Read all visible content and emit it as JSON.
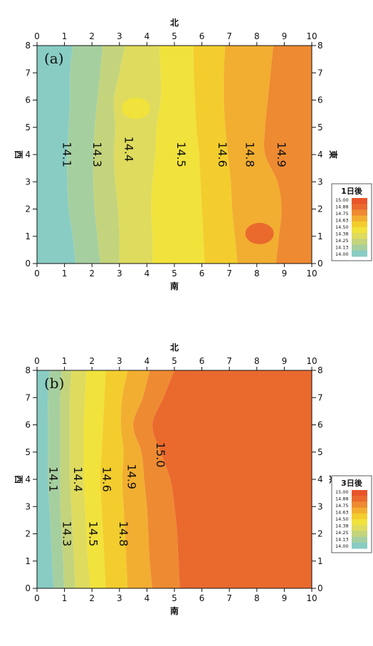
{
  "colors": {
    "levels": [
      "#88ccc4",
      "#a6cfa0",
      "#c4d47c",
      "#dedb5e",
      "#f1e23c",
      "#f3cd2e",
      "#f2ae30",
      "#ee8a32",
      "#ea6a2e",
      "#e8552a"
    ]
  },
  "chart_data": [
    {
      "type": "heatmap",
      "panel_label": "(a)",
      "legend_title": "1日後",
      "legend_entries": [
        "15.00",
        "14.88",
        "14.75",
        "14.63",
        "14.50",
        "14.38",
        "14.25",
        "14.13",
        "14.00"
      ],
      "axis_labels": {
        "top": "北",
        "bottom": "南",
        "left": "西",
        "right": "東"
      },
      "x_ticks": [
        "0",
        "1",
        "2",
        "3",
        "4",
        "5",
        "6",
        "7",
        "8",
        "9",
        "10"
      ],
      "y_ticks": [
        "0",
        "1",
        "2",
        "3",
        "4",
        "5",
        "6",
        "7",
        "8"
      ],
      "xlim": [
        0,
        10
      ],
      "ylim": [
        0,
        8
      ],
      "contours": [
        {
          "label": "14.1",
          "value": 14.1,
          "x": [
            1.4,
            1.3,
            1.15,
            1.1,
            1.1,
            1.15,
            1.2,
            1.2,
            1.3
          ]
        },
        {
          "label": "14.3",
          "value": 14.3,
          "x": [
            2.3,
            2.2,
            2.1,
            2.05,
            2.05,
            2.1,
            2.2,
            2.3,
            2.4
          ]
        },
        {
          "label": "14.4",
          "value": 14.4,
          "x": [
            3.0,
            3.0,
            2.95,
            2.85,
            2.8,
            2.85,
            2.8,
            3.0,
            3.2
          ]
        },
        {
          "label": "14.5",
          "value": 14.5,
          "x": [
            4.2,
            4.2,
            4.15,
            4.2,
            4.3,
            4.35,
            4.5,
            4.5,
            4.45
          ]
        },
        {
          "label": "14.6",
          "value": 14.6,
          "x": [
            6.1,
            6.05,
            6.0,
            5.95,
            5.9,
            5.8,
            5.75,
            5.7,
            5.7
          ]
        },
        {
          "label": "14.8",
          "value": 14.8,
          "x": [
            7.3,
            7.2,
            7.1,
            7.05,
            6.95,
            6.85,
            6.8,
            6.8,
            6.85
          ]
        },
        {
          "label": "14.9",
          "value": 14.9,
          "x": [
            8.7,
            8.8,
            8.9,
            8.75,
            8.3,
            8.3,
            8.4,
            8.5,
            8.6
          ]
        }
      ],
      "spots": [
        {
          "x": 3.6,
          "y": 5.7,
          "level": 4
        },
        {
          "x": 8.1,
          "y": 1.1,
          "level": 8
        }
      ],
      "label_positions": [
        {
          "text": "14.1",
          "x": 0.95,
          "y": 4.0
        },
        {
          "text": "14.3",
          "x": 2.05,
          "y": 4.0
        },
        {
          "text": "14.4",
          "x": 3.2,
          "y": 4.2
        },
        {
          "text": "14.5",
          "x": 5.1,
          "y": 4.0
        },
        {
          "text": "14.6",
          "x": 6.6,
          "y": 4.0
        },
        {
          "text": "14.8",
          "x": 7.6,
          "y": 4.0
        },
        {
          "text": "14.9",
          "x": 8.75,
          "y": 4.0
        }
      ]
    },
    {
      "type": "heatmap",
      "panel_label": "(b)",
      "legend_title": "3日後",
      "legend_entries": [
        "15.00",
        "14.88",
        "14.75",
        "14.63",
        "14.50",
        "14.38",
        "14.25",
        "14.13",
        "14.00"
      ],
      "axis_labels": {
        "top": "北",
        "bottom": "南",
        "left": "西",
        "right": "東"
      },
      "x_ticks": [
        "0",
        "1",
        "2",
        "3",
        "4",
        "5",
        "6",
        "7",
        "8",
        "9",
        "10"
      ],
      "y_ticks": [
        "0",
        "1",
        "2",
        "3",
        "4",
        "5",
        "6",
        "7",
        "8"
      ],
      "xlim": [
        0,
        10
      ],
      "ylim": [
        0,
        8
      ],
      "contours": [
        {
          "label": "14.1",
          "value": 14.1,
          "x": [
            0.6,
            0.55,
            0.5,
            0.45,
            0.4,
            0.4,
            0.4,
            0.4,
            0.45
          ]
        },
        {
          "label": "14.3",
          "value": 14.3,
          "x": [
            1.0,
            0.95,
            0.9,
            0.85,
            0.85,
            0.85,
            0.85,
            0.85,
            0.9
          ]
        },
        {
          "label": "14.4",
          "value": 14.4,
          "x": [
            1.4,
            1.35,
            1.3,
            1.25,
            1.2,
            1.2,
            1.2,
            1.2,
            1.25
          ]
        },
        {
          "label": "14.5",
          "value": 14.5,
          "x": [
            1.95,
            1.85,
            1.8,
            1.75,
            1.7,
            1.7,
            1.7,
            1.75,
            1.8
          ]
        },
        {
          "label": "14.6",
          "value": 14.6,
          "x": [
            2.5,
            2.45,
            2.4,
            2.35,
            2.3,
            2.35,
            2.4,
            2.45,
            2.5
          ]
        },
        {
          "label": "14.8",
          "value": 14.8,
          "x": [
            3.3,
            3.25,
            3.2,
            3.15,
            3.1,
            3.15,
            3.05,
            3.1,
            3.3
          ]
        },
        {
          "label": "14.9",
          "value": 14.9,
          "x": [
            4.2,
            4.1,
            4.05,
            4.0,
            3.9,
            3.8,
            3.5,
            3.85,
            4.1
          ]
        },
        {
          "label": "15.0",
          "value": 15.0,
          "x": [
            5.2,
            5.15,
            5.1,
            5.0,
            4.85,
            4.5,
            4.2,
            4.6,
            5.0
          ]
        }
      ],
      "spots": [],
      "label_positions": [
        {
          "text": "14.1",
          "x": 0.45,
          "y": 4.0
        },
        {
          "text": "14.4",
          "x": 1.35,
          "y": 4.0
        },
        {
          "text": "14.6",
          "x": 2.4,
          "y": 4.0
        },
        {
          "text": "14.9",
          "x": 3.3,
          "y": 4.1
        },
        {
          "text": "15.0",
          "x": 4.35,
          "y": 4.9
        },
        {
          "text": "14.3",
          "x": 0.95,
          "y": 2.0
        },
        {
          "text": "14.5",
          "x": 1.9,
          "y": 2.0
        },
        {
          "text": "14.8",
          "x": 3.0,
          "y": 2.0
        }
      ]
    }
  ]
}
